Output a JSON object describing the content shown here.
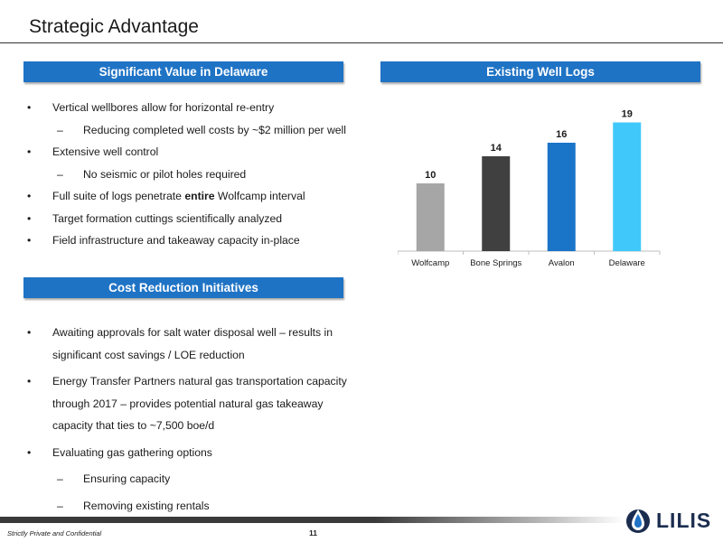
{
  "title": "Strategic Advantage",
  "sections": {
    "value": {
      "header": "Significant Value in Delaware",
      "items": [
        {
          "level": 1,
          "text": "Vertical wellbores allow for horizontal re-entry"
        },
        {
          "level": 2,
          "text": "Reducing completed well costs by ~$2 million per well"
        },
        {
          "level": 1,
          "text": "Extensive well control"
        },
        {
          "level": 2,
          "text": "No seismic or pilot holes required"
        },
        {
          "level": 1,
          "text_before": "Full suite of logs penetrate ",
          "text_bold": "entire",
          "text_after": " Wolfcamp interval"
        },
        {
          "level": 1,
          "text": "Target formation cuttings scientifically analyzed"
        },
        {
          "level": 1,
          "text": "Field infrastructure and takeaway capacity in-place"
        }
      ]
    },
    "logs": {
      "header": "Existing Well Logs"
    },
    "cost": {
      "header": "Cost Reduction Initiatives",
      "items": [
        {
          "level": 1,
          "text": "Awaiting approvals for salt water disposal well – results in significant cost savings / LOE reduction"
        },
        {
          "level": 1,
          "text": "Energy Transfer Partners natural gas transportation capacity through 2017 – provides potential natural gas takeaway capacity that ties to ~7,500 boe/d"
        },
        {
          "level": 1,
          "text": "Evaluating gas gathering options"
        },
        {
          "level": 2,
          "text": "Ensuring capacity"
        },
        {
          "level": 2,
          "text": "Removing existing rentals"
        }
      ]
    }
  },
  "chart_data": {
    "type": "bar",
    "categories": [
      "Wolfcamp",
      "Bone Springs",
      "Avalon",
      "Delaware"
    ],
    "values": [
      10,
      14,
      16,
      19
    ],
    "colors": [
      "#a6a6a6",
      "#404040",
      "#1a74c8",
      "#40c8fb"
    ],
    "title": "",
    "xlabel": "",
    "ylabel": "",
    "ylim": [
      0,
      20
    ],
    "grid": false,
    "legend": "none",
    "data_labels": true
  },
  "footer": {
    "confidential": "Strictly Private and Confidential",
    "page_number": "11"
  },
  "logo": {
    "text": "LILIS",
    "icon": "water-drop-icon",
    "color": "#1b2d4f"
  },
  "colors": {
    "header_bar": "#1f73c5"
  }
}
